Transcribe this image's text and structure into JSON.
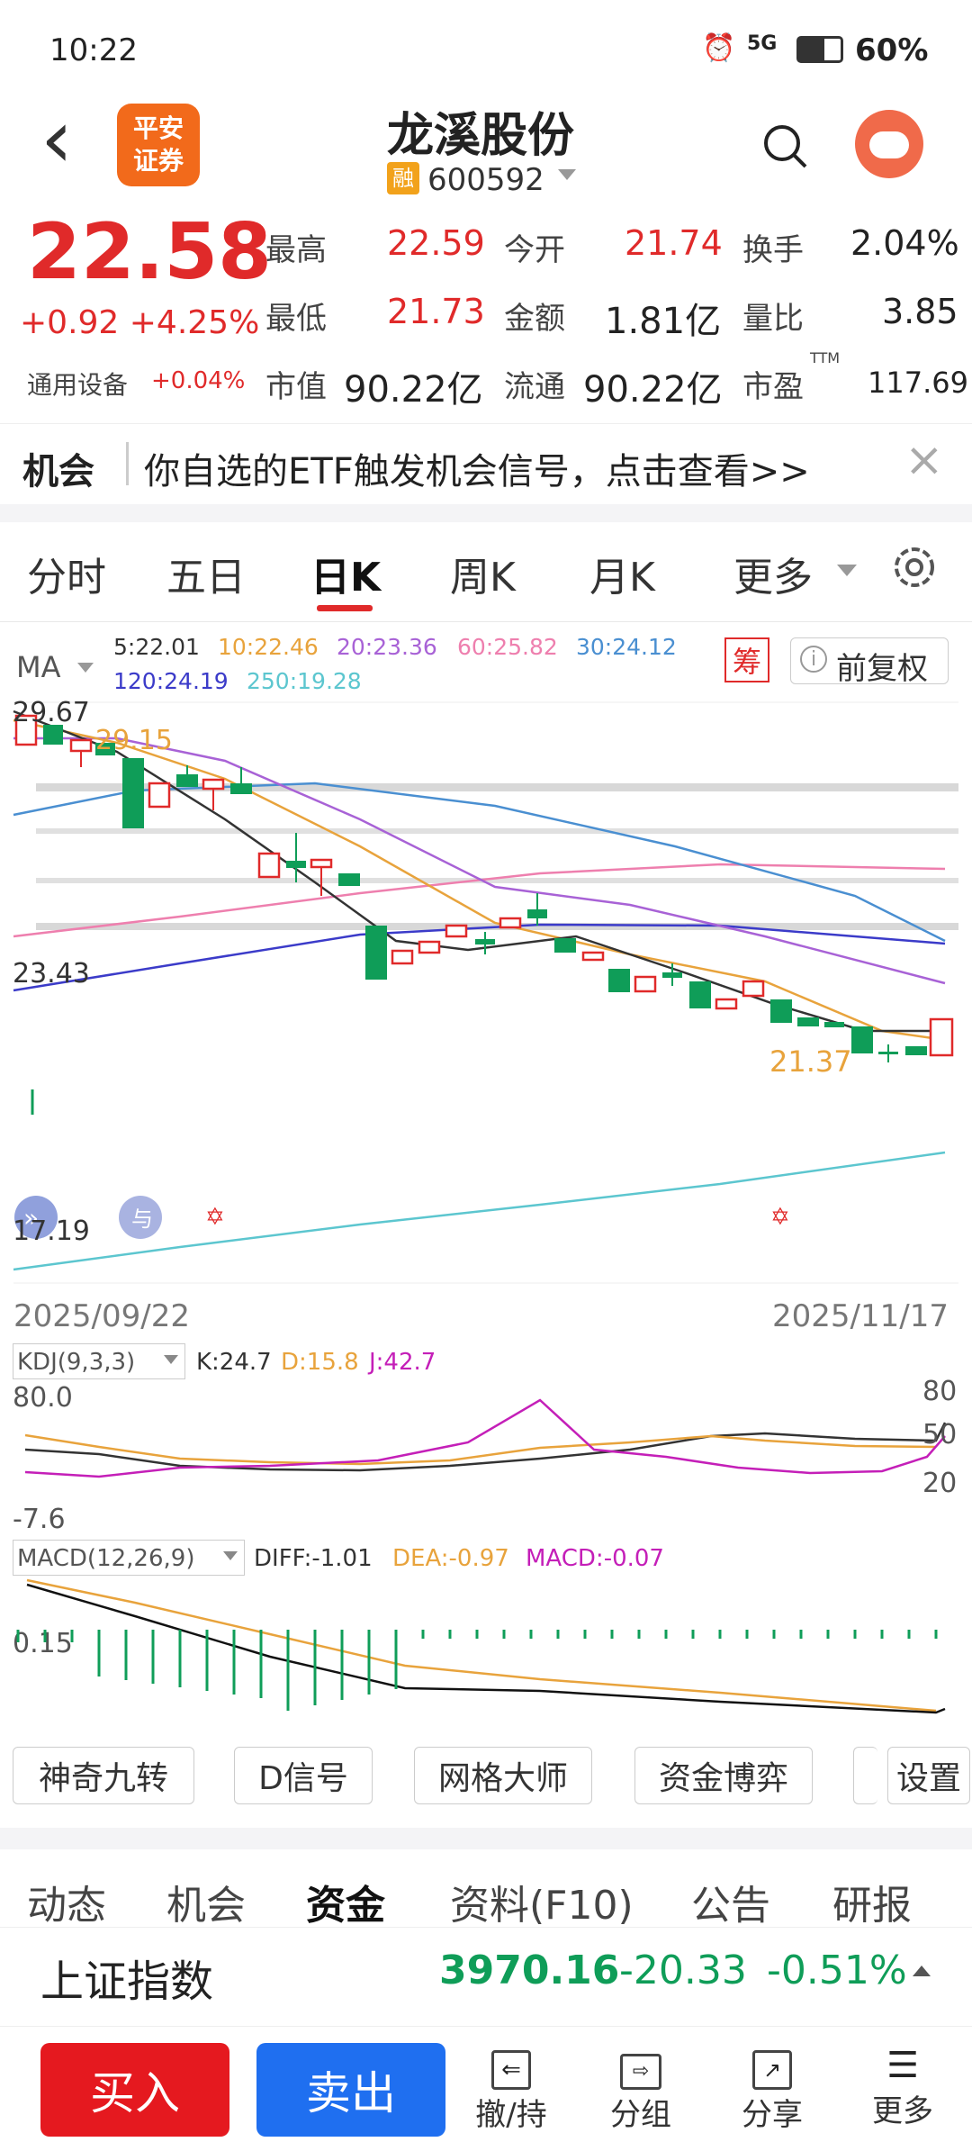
{
  "status": {
    "time": "10:22",
    "signal": "5G",
    "battery": "60%"
  },
  "header": {
    "back": "‹",
    "broker_logo": "平安\n证券",
    "stock_name": "龙溪股份",
    "margin_badge": "融",
    "code": "600592",
    "search_icon": "search-icon",
    "avatar_icon": "avatar-icon"
  },
  "quote": {
    "price": "22.58",
    "change": "+0.92 +4.25%",
    "sector": "通用设备",
    "sector_change": "+0.04%",
    "fields": [
      {
        "label": "最高",
        "value": "22.59"
      },
      {
        "label": "今开",
        "value": "21.74"
      },
      {
        "label": "换手",
        "value": "2.04%"
      },
      {
        "label": "最低",
        "value": "21.73"
      },
      {
        "label": "金额",
        "value": "1.81亿"
      },
      {
        "label": "量比",
        "value": "3.85"
      },
      {
        "label": "市值",
        "value": "90.22亿"
      },
      {
        "label": "流通",
        "value": "90.22亿"
      },
      {
        "label": "市盈",
        "value": "117.69"
      }
    ],
    "ttm": "TTM"
  },
  "notice": {
    "tag": "机会",
    "text": "你自选的ETF触发机会信号，点击查看>>"
  },
  "tabs": [
    "分时",
    "五日",
    "日K",
    "周K",
    "月K",
    "更多"
  ],
  "active_tab": "日K",
  "ma": {
    "label": "MA",
    "items": [
      "5:22.01",
      "10:22.46",
      "20:23.36",
      "60:25.82",
      "30:24.12",
      "120:24.19",
      "250:19.28"
    ],
    "chip_button": "筹",
    "adjust": "前复权"
  },
  "chart_data": {
    "type": "candlestick",
    "price_labels": [
      "29.67",
      "29.15",
      "23.43",
      "21.37",
      "17.19"
    ],
    "date_start": "2025/09/22",
    "date_end": "2025/11/17",
    "kdj": {
      "label": "KDJ(9,3,3)",
      "K": "K:24.7",
      "D": "D:15.8",
      "J": "J:42.7",
      "axis_left_top": "80.0",
      "axis_left_bottom": "-7.6",
      "axis_right": [
        "80",
        "50",
        "20"
      ]
    },
    "macd": {
      "label": "MACD(12,26,9)",
      "DIFF": "DIFF:-1.01",
      "DEA": "DEA:-0.97",
      "MACD": "MACD:-0.07",
      "axis": "0.15"
    }
  },
  "tools": [
    "神奇九转",
    "D信号",
    "网格大师",
    "资金博弈",
    "设置"
  ],
  "bottom_tabs": [
    "动态",
    "机会",
    "资金",
    "资料(F10)",
    "公告",
    "研报"
  ],
  "active_bottom_tab": "资金",
  "index": {
    "name": "上证指数",
    "value": "3970.16",
    "change": "-20.33",
    "pct": "-0.51%"
  },
  "footer": {
    "buy": "买入",
    "sell": "卖出",
    "cancel": "撤/持",
    "group": "分组",
    "share": "分享",
    "more": "更多"
  },
  "colors": {
    "up": "#e02a2a",
    "down": "#0f9d58",
    "buy": "#e5191f",
    "sell": "#1f6ff0"
  }
}
